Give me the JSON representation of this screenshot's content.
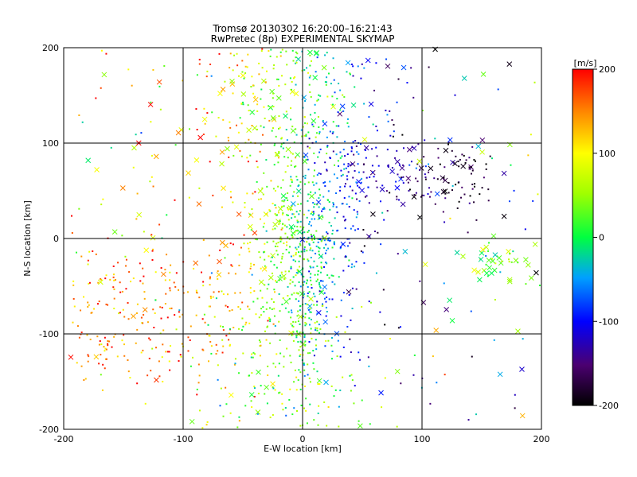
{
  "chart_data": {
    "type": "scatter",
    "title": "Tromsø 20130302 16:20:00–16:21:43",
    "subtitle": "RwPretec (8p) EXPERIMENTAL SKYMAP",
    "xlabel": "E-W location [km]",
    "ylabel": "N-S location [km]",
    "xlim": [
      -200,
      200
    ],
    "ylim": [
      -200,
      200
    ],
    "x_ticks": [
      -200,
      -100,
      0,
      100,
      200
    ],
    "y_ticks": [
      -200,
      -100,
      0,
      100,
      200
    ],
    "grid": true,
    "colorbar": {
      "label": "[m/s]",
      "range": [
        -200,
        200
      ],
      "ticks": [
        "200",
        "100",
        "0",
        "-100",
        "-200"
      ]
    },
    "note": "Scatter points are plotted from a reproduction sample of the visible distribution; small dots and x markers, colored by line-of-sight velocity."
  }
}
